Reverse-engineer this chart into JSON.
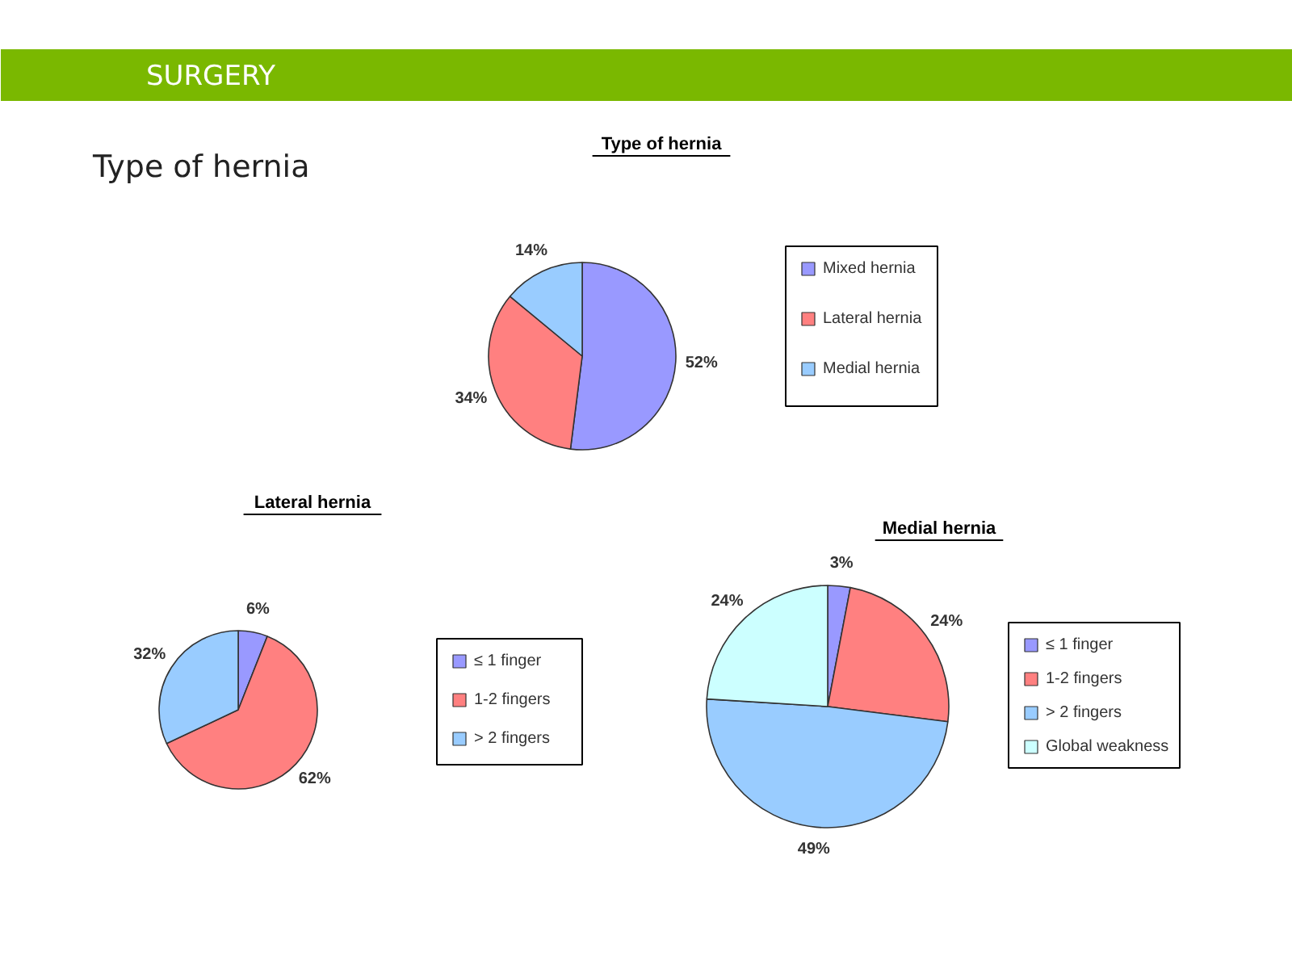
{
  "chart_data": [
    {
      "type": "pie",
      "title": "Type of hernia",
      "annotations": [
        "SURGERY",
        "Type of hernia"
      ],
      "categories": [
        "Mixed hernia",
        "Lateral hernia",
        "Medial hernia"
      ],
      "values": [
        52,
        34,
        14
      ],
      "value_labels": [
        "52%",
        "34%",
        "14%"
      ],
      "colors": [
        "#9999ff",
        "#ff8080",
        "#99ccff"
      ],
      "legend": "right"
    },
    {
      "type": "pie",
      "title": "Lateral hernia",
      "categories": [
        "≤ 1 finger",
        "1-2 fingers",
        "> 2 fingers"
      ],
      "values": [
        6,
        62,
        32
      ],
      "value_labels": [
        "6%",
        "62%",
        "32%"
      ],
      "colors": [
        "#9999ff",
        "#ff8080",
        "#99ccff"
      ],
      "legend": "right"
    },
    {
      "type": "pie",
      "title": "Medial hernia",
      "categories": [
        "≤ 1 finger",
        "1-2 fingers",
        "> 2 fingers",
        "Global weakness"
      ],
      "values": [
        3,
        24,
        49,
        24
      ],
      "value_labels": [
        "3%",
        "24%",
        "49%",
        "24%"
      ],
      "colors": [
        "#9999ff",
        "#ff8080",
        "#99ccff",
        "#ccffff"
      ],
      "legend": "right"
    }
  ]
}
